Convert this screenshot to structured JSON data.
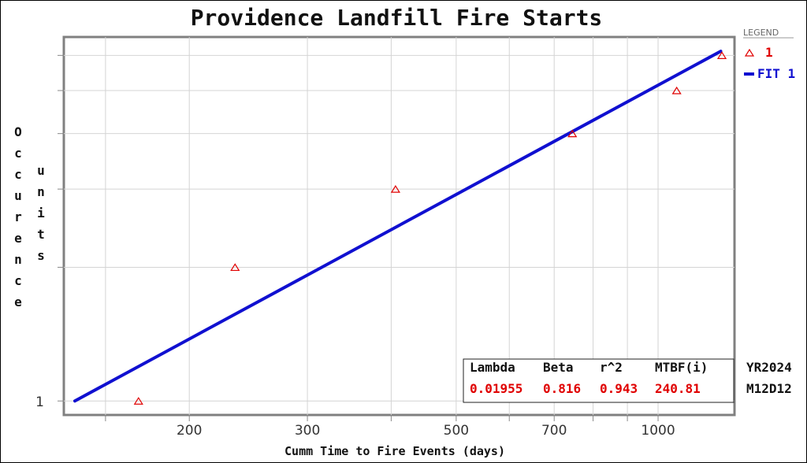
{
  "chart_data": {
    "type": "scatter",
    "title": "Providence Landfill Fire Starts",
    "xlabel": "Cumm Time to Fire Events (days)",
    "ylabel_col1": "Occurence",
    "ylabel_col2": "units",
    "x_scale": "log",
    "y_scale": "log",
    "xlim": [
      130,
      1300
    ],
    "ylim": [
      0.93,
      6.6
    ],
    "x_major_ticks": [
      200,
      300,
      500,
      700,
      1000
    ],
    "x_minor_ticks": [
      150,
      400,
      600,
      800,
      900
    ],
    "y_tick_labels": [
      {
        "value": 1,
        "label": "1"
      }
    ],
    "y_grid_values": [
      2,
      3,
      4,
      5,
      6
    ],
    "grid": true,
    "legend_position": "top-right",
    "legend_title": "LEGEND",
    "series": [
      {
        "name": "1",
        "kind": "points",
        "marker": "triangle",
        "color": "#e00000",
        "x": [
          168,
          234,
          406,
          745,
          1066,
          1245
        ],
        "y": [
          1,
          2,
          3,
          4,
          5,
          6
        ]
      },
      {
        "name": "FIT 1",
        "kind": "line",
        "color": "#1010d0",
        "x": [
          135,
          1240
        ],
        "y": [
          1,
          6.13
        ]
      }
    ],
    "stats_table": {
      "headers": [
        "Lambda",
        "Beta",
        "r^2",
        "MTBF(i)"
      ],
      "values": [
        "0.01955",
        "0.816",
        "0.943",
        "240.81"
      ]
    },
    "side_text": [
      "YR2024",
      "M12D12"
    ]
  }
}
